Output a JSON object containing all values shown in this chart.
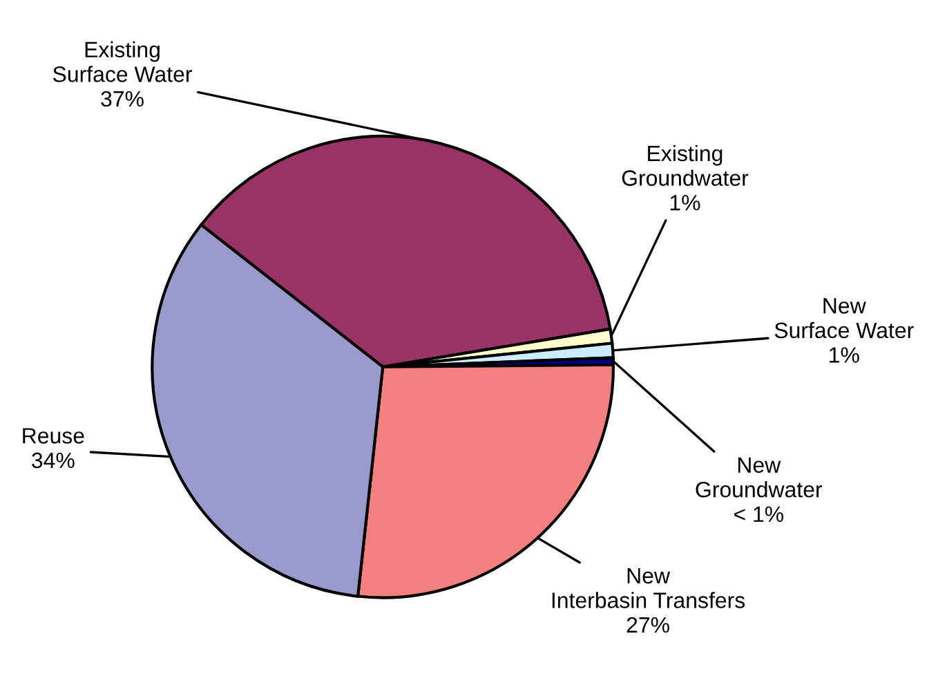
{
  "chart_data": {
    "type": "pie",
    "categories": [
      "Existing\nSurface Water",
      "Existing\nGroundwater",
      "New\nSurface Water",
      "New\nGroundwater",
      "New\nInterbasin Transfers",
      "Reuse"
    ],
    "values": [
      37,
      1,
      1,
      0.5,
      27,
      34
    ],
    "value_labels": [
      "37%",
      "1%",
      "1%",
      "< 1%",
      "27%",
      "34%"
    ],
    "colors": [
      "#993366",
      "#ffffcc",
      "#ccecff",
      "#000080",
      "#f47f7f",
      "#9999cc"
    ]
  }
}
